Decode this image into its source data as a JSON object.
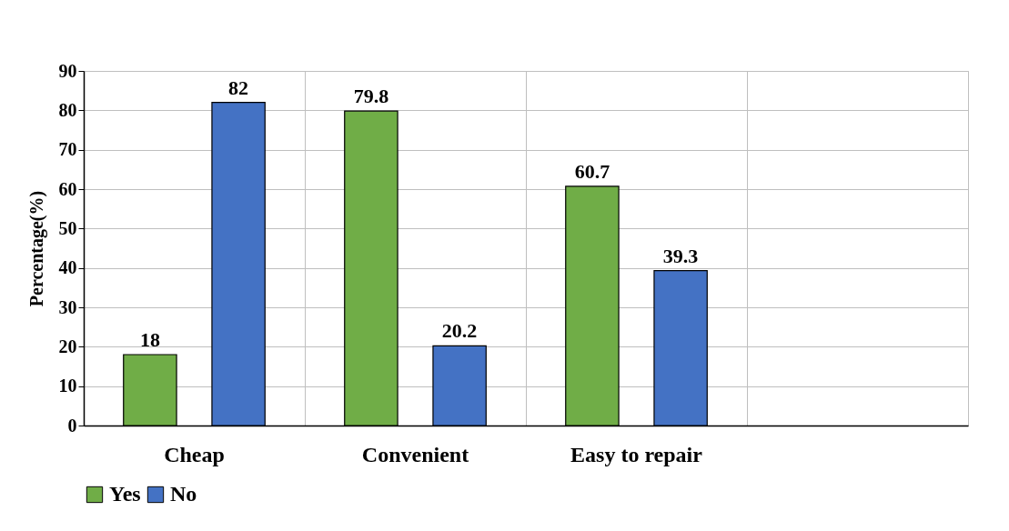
{
  "chart_data": {
    "type": "bar",
    "ylabel": "Percentage(%)",
    "categories": [
      "Cheap",
      "Convenient",
      "Easy to repair",
      null
    ],
    "series": [
      {
        "name": "Yes",
        "color": "#70ad47",
        "values": [
          18,
          79.8,
          60.7,
          null
        ]
      },
      {
        "name": "No",
        "color": "#4472c4",
        "values": [
          82,
          20.2,
          39.3,
          null
        ]
      }
    ],
    "ylim": [
      0,
      90
    ],
    "yticks": [
      0,
      10,
      20,
      30,
      40,
      50,
      60,
      70,
      80,
      90
    ],
    "grid": true,
    "legend": "bottom",
    "data_labels": true
  }
}
